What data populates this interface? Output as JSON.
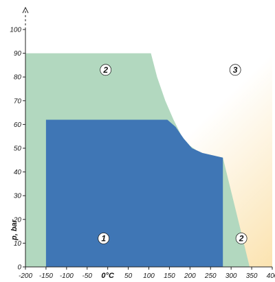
{
  "chart_data": {
    "type": "area",
    "xlabel": "0°C",
    "ylabel": "p, bar",
    "xlim": [
      -200,
      400
    ],
    "ylim": [
      0,
      100
    ],
    "x_ticks": [
      -200,
      -150,
      -100,
      -50,
      0,
      50,
      100,
      150,
      200,
      250,
      300,
      350,
      400
    ],
    "y_ticks": [
      0,
      10,
      20,
      30,
      40,
      50,
      60,
      70,
      80,
      90,
      100
    ],
    "x_tick_labels": [
      "-200",
      "-150",
      "-100",
      "-50",
      "0°C",
      "50",
      "100",
      "150",
      "200",
      "250",
      "300",
      "350",
      "400"
    ],
    "y_tick_labels": [
      "0",
      "10",
      "20",
      "30",
      "40",
      "50",
      "60",
      "70",
      "80",
      "90",
      "100"
    ],
    "grid": false,
    "regions": [
      {
        "name": "3",
        "color": "#fdf0c8",
        "points": [
          [
            -200,
            100
          ],
          [
            400,
            100
          ],
          [
            400,
            0
          ],
          [
            -200,
            0
          ]
        ]
      },
      {
        "name": "2",
        "color": "#b2d8bf",
        "points": [
          [
            -200,
            90
          ],
          [
            105,
            90
          ],
          [
            120,
            80
          ],
          [
            140,
            70
          ],
          [
            160,
            62
          ],
          [
            180,
            55
          ],
          [
            200,
            51
          ],
          [
            225,
            48
          ],
          [
            280,
            46
          ],
          [
            345,
            0
          ],
          [
            -200,
            0
          ]
        ]
      },
      {
        "name": "1",
        "color": "#3f76b5",
        "points": [
          [
            -150,
            62
          ],
          [
            145,
            62
          ],
          [
            165,
            59
          ],
          [
            185,
            54
          ],
          [
            205,
            50
          ],
          [
            230,
            48
          ],
          [
            280,
            46
          ],
          [
            280,
            0
          ],
          [
            -150,
            0
          ]
        ]
      }
    ],
    "zone_labels": [
      {
        "text": "1",
        "x": -10,
        "y": 12
      },
      {
        "text": "2",
        "x": -5,
        "y": 83
      },
      {
        "text": "3",
        "x": 310,
        "y": 83
      },
      {
        "text": "2",
        "x": 325,
        "y": 12
      }
    ]
  }
}
